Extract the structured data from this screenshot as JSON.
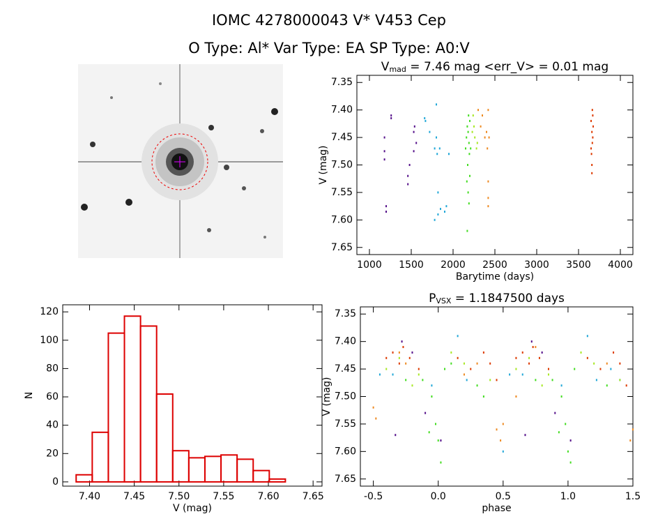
{
  "header": {
    "title": "IOMC 4278000043    V* V453 Cep",
    "subtitle": "O Type: Al*  Var Type: EA  SP Type: A0:V"
  },
  "chart_data": [
    {
      "type": "scatter",
      "title": {
        "text": "V",
        "sub": "mad",
        "rest": " = 7.46 mag <err_V> = 0.01 mag"
      },
      "x_label": "Barytime (days)",
      "y_label": "V (mag)",
      "xlim": [
        850,
        4150
      ],
      "xticks": [
        1000,
        1500,
        2000,
        2500,
        3000,
        3500,
        4000
      ],
      "ylim": [
        7.663,
        7.337
      ],
      "yticks": [
        7.35,
        {
          "value": 7.4,
          "label": "7.40"
        },
        7.45,
        {
          "value": 7.5,
          "label": "7.50"
        },
        7.55,
        {
          "value": 7.6,
          "label": "7.60"
        },
        7.65
      ],
      "series": [
        {
          "color": "#55108a",
          "x": [
            1180,
            1180,
            1180,
            1200,
            1200,
            1260,
            1260,
            1460,
            1460,
            1480,
            1530,
            1530,
            1540,
            1560
          ],
          "values": [
            7.45,
            7.475,
            7.49,
            7.575,
            7.585,
            7.41,
            7.415,
            7.52,
            7.535,
            7.5,
            7.44,
            7.475,
            7.43,
            7.46
          ]
        },
        {
          "color": "#22a8d8",
          "x": [
            1660,
            1670,
            1720,
            1780,
            1800,
            1800,
            1810,
            1820,
            1820,
            1840,
            1850,
            1920,
            1950,
            1900,
            1780
          ],
          "values": [
            7.415,
            7.42,
            7.44,
            7.47,
            7.39,
            7.45,
            7.48,
            7.55,
            7.59,
            7.47,
            7.58,
            7.575,
            7.48,
            7.585,
            7.6
          ]
        },
        {
          "color": "#44dd22",
          "x": [
            2150,
            2160,
            2170,
            2175,
            2180,
            2185,
            2190,
            2195,
            2200,
            2170,
            2190,
            2180,
            2200,
            2210,
            2165
          ],
          "values": [
            7.47,
            7.45,
            7.43,
            7.5,
            7.55,
            7.41,
            7.46,
            7.48,
            7.52,
            7.62,
            7.57,
            7.44,
            7.42,
            7.47,
            7.53
          ]
        },
        {
          "color": "#a8e824",
          "x": [
            2230,
            2250,
            2260,
            2280,
            2240,
            2290
          ],
          "values": [
            7.44,
            7.43,
            7.45,
            7.47,
            7.41,
            7.46
          ]
        },
        {
          "color": "#ee8a22",
          "x": [
            2300,
            2330,
            2350,
            2380,
            2400,
            2410,
            2420,
            2420,
            2420,
            2420,
            2430
          ],
          "values": [
            7.4,
            7.43,
            7.41,
            7.45,
            7.44,
            7.47,
            7.53,
            7.56,
            7.575,
            7.4,
            7.45
          ]
        },
        {
          "color": "#dd3a00",
          "x": [
            3650,
            3660,
            3665,
            3670,
            3655,
            3660,
            3670,
            3675,
            3660,
            3650,
            3665
          ],
          "values": [
            7.42,
            7.44,
            7.46,
            7.41,
            7.48,
            7.5,
            7.45,
            7.43,
            7.515,
            7.47,
            7.4
          ]
        }
      ]
    },
    {
      "type": "histogram",
      "x_label": "V (mag)",
      "y_label": "N",
      "color": "#dd0000",
      "xlim": [
        7.37,
        7.66
      ],
      "xticks": [
        {
          "value": 7.4,
          "label": "7.40"
        },
        7.45,
        {
          "value": 7.5,
          "label": "7.50"
        },
        7.55,
        {
          "value": 7.6,
          "label": "7.60"
        },
        7.65
      ],
      "ylim": [
        -3,
        125
      ],
      "yticks": [
        0,
        20,
        40,
        60,
        80,
        100,
        120
      ],
      "bins": [
        7.385,
        7.403,
        7.421,
        7.439,
        7.457,
        7.475,
        7.493,
        7.511,
        7.529,
        7.547,
        7.565,
        7.583,
        7.601,
        7.619
      ],
      "values": [
        5,
        35,
        105,
        117,
        110,
        62,
        22,
        17,
        18,
        19,
        16,
        8,
        2
      ]
    },
    {
      "type": "scatter",
      "title": {
        "text": "P",
        "sub": "VSX",
        "rest": " = 1.1847500 days"
      },
      "x_label": "phase",
      "y_label": "V (mag)",
      "xlim": [
        -0.6,
        1.5
      ],
      "xticks": [
        -0.5,
        {
          "value": 0,
          "label": "0.0"
        },
        0.5,
        {
          "value": 1,
          "label": "1.0"
        },
        1.5
      ],
      "ylim": [
        7.663,
        7.337
      ],
      "yticks": [
        7.35,
        {
          "value": 7.4,
          "label": "7.40"
        },
        7.45,
        {
          "value": 7.5,
          "label": "7.50"
        },
        7.55,
        {
          "value": 7.6,
          "label": "7.60"
        },
        7.65
      ],
      "series": [
        {
          "color": "#55108a",
          "x": [
            -0.33,
            0.02,
            -0.28,
            -0.2,
            0.67,
            1.02,
            0.72,
            0.8,
            0.9,
            -0.1
          ],
          "values": [
            7.57,
            7.58,
            7.4,
            7.42,
            7.57,
            7.58,
            7.4,
            7.42,
            7.53,
            7.53
          ]
        },
        {
          "color": "#22a8d8",
          "x": [
            -0.45,
            -0.35,
            0.15,
            0.22,
            0.5,
            -0.05,
            0.55,
            0.65,
            1.15,
            1.22,
            0.95,
            1.4,
            1.33
          ],
          "values": [
            7.46,
            7.46,
            7.39,
            7.47,
            7.6,
            7.48,
            7.46,
            7.46,
            7.39,
            7.47,
            7.48,
            7.47,
            7.45
          ]
        },
        {
          "color": "#44dd22",
          "x": [
            -0.12,
            -0.05,
            -0.02,
            0,
            0.02,
            0.05,
            0.1,
            0.3,
            0.35,
            0.88,
            0.95,
            0.98,
            1,
            1.02,
            1.05,
            1.3,
            -0.25,
            0.75,
            -0.07,
            0.93
          ],
          "values": [
            7.47,
            7.5,
            7.55,
            7.58,
            7.62,
            7.45,
            7.44,
            7.48,
            7.5,
            7.47,
            7.5,
            7.55,
            7.6,
            7.62,
            7.45,
            7.48,
            7.47,
            7.47,
            7.565,
            7.565
          ]
        },
        {
          "color": "#a8e824",
          "x": [
            -0.4,
            -0.3,
            -0.15,
            0.1,
            0.2,
            0.4,
            0.6,
            0.7,
            0.85,
            1.1,
            1.2,
            1.4,
            -0.2,
            0.8
          ],
          "values": [
            7.45,
            7.43,
            7.46,
            7.42,
            7.44,
            7.47,
            7.45,
            7.43,
            7.46,
            7.42,
            7.44,
            7.47,
            7.48,
            7.48
          ]
        },
        {
          "color": "#ee8a22",
          "x": [
            -0.5,
            -0.48,
            -0.3,
            -0.25,
            0.3,
            0.45,
            0.48,
            0.5,
            0.6,
            0.75,
            1.3,
            1.5,
            1.48,
            0.2
          ],
          "values": [
            7.52,
            7.54,
            7.42,
            7.44,
            7.44,
            7.56,
            7.58,
            7.55,
            7.5,
            7.41,
            7.44,
            7.56,
            7.58,
            7.46
          ]
        },
        {
          "color": "#dd3a00",
          "x": [
            -0.4,
            -0.35,
            -0.3,
            -0.27,
            -0.22,
            -0.15,
            0.15,
            0.25,
            0.35,
            0.4,
            0.45,
            0.6,
            0.65,
            0.7,
            0.73,
            0.78,
            0.85,
            1.15,
            1.25,
            1.35,
            1.4,
            1.45
          ],
          "values": [
            7.43,
            7.42,
            7.44,
            7.41,
            7.43,
            7.45,
            7.43,
            7.45,
            7.42,
            7.44,
            7.47,
            7.43,
            7.42,
            7.44,
            7.41,
            7.43,
            7.45,
            7.43,
            7.45,
            7.42,
            7.44,
            7.48
          ]
        }
      ]
    }
  ]
}
